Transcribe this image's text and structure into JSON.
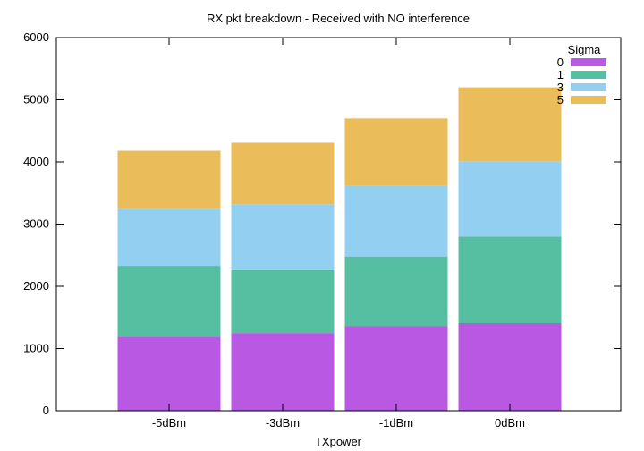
{
  "chart_data": {
    "type": "bar",
    "stacked": true,
    "title": "RX pkt breakdown - Received with NO interference",
    "xlabel": "TXpower",
    "ylabel": "",
    "ylim": [
      0,
      6000
    ],
    "yticks": [
      "0",
      "1000",
      "2000",
      "3000",
      "4000",
      "5000",
      "6000"
    ],
    "categories": [
      "-5dBm",
      "-3dBm",
      "-1dBm",
      "0dBm"
    ],
    "legend_title": "Sigma",
    "legend_position": "top-right",
    "grid": false,
    "series": [
      {
        "name": "0",
        "color": "#b858e3",
        "values": [
          1190,
          1250,
          1360,
          1410
        ]
      },
      {
        "name": "1",
        "color": "#57bfa1",
        "values": [
          1140,
          1010,
          1120,
          1390
        ]
      },
      {
        "name": "3",
        "color": "#93cff0",
        "values": [
          910,
          1060,
          1140,
          1210
        ]
      },
      {
        "name": "5",
        "color": "#ebbd5a",
        "values": [
          940,
          990,
          1080,
          1190
        ]
      }
    ]
  }
}
